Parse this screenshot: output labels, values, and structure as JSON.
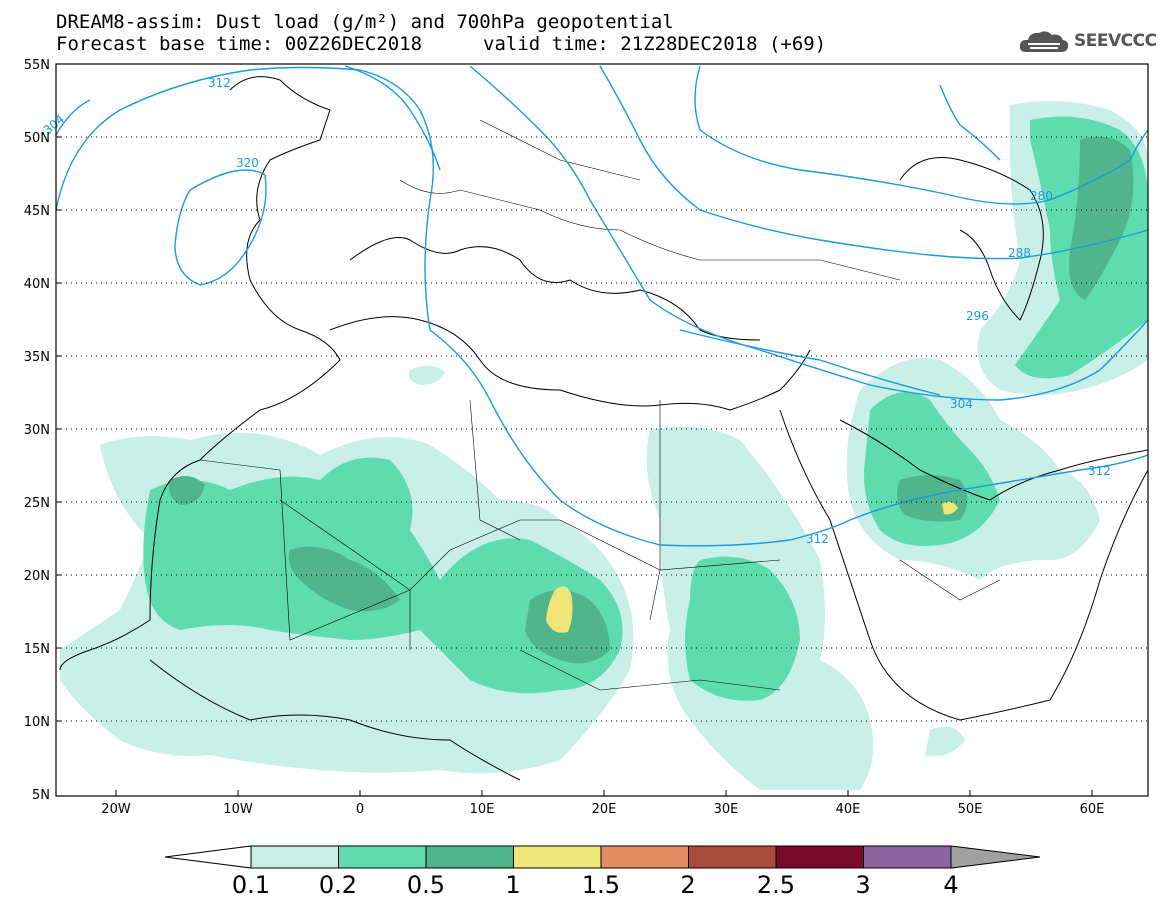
{
  "header": {
    "title_line1": "DREAM8-assim: Dust load (g/m²) and 700hPa geopotential",
    "title_line2": "Forecast base time: 00Z26DEC2018",
    "valid_time": "valid time: 21Z28DEC2018 (+69)",
    "logo_text": "SEEVCCC"
  },
  "map": {
    "lat_labels": [
      "55N",
      "50N",
      "45N",
      "40N",
      "35N",
      "30N",
      "25N",
      "20N",
      "15N",
      "10N",
      "5N"
    ],
    "lon_labels": [
      "20W",
      "10W",
      "0",
      "10E",
      "20E",
      "30E",
      "40E",
      "50E",
      "60E"
    ],
    "contour_labels": [
      "312",
      "304",
      "320",
      "280",
      "288",
      "296",
      "304",
      "312",
      "312"
    ]
  },
  "colorbar": {
    "labels": [
      "0.1",
      "0.2",
      "0.5",
      "1",
      "1.5",
      "2",
      "2.5",
      "3",
      "4"
    ],
    "colors": [
      "#c8f0e6",
      "#5fdcaf",
      "#50b48c",
      "#f0e678",
      "#e68c64",
      "#aa4b3c",
      "#780a28",
      "#8c64a0"
    ],
    "under_color": "#ffffff",
    "over_color": "#a0a0a0"
  }
}
